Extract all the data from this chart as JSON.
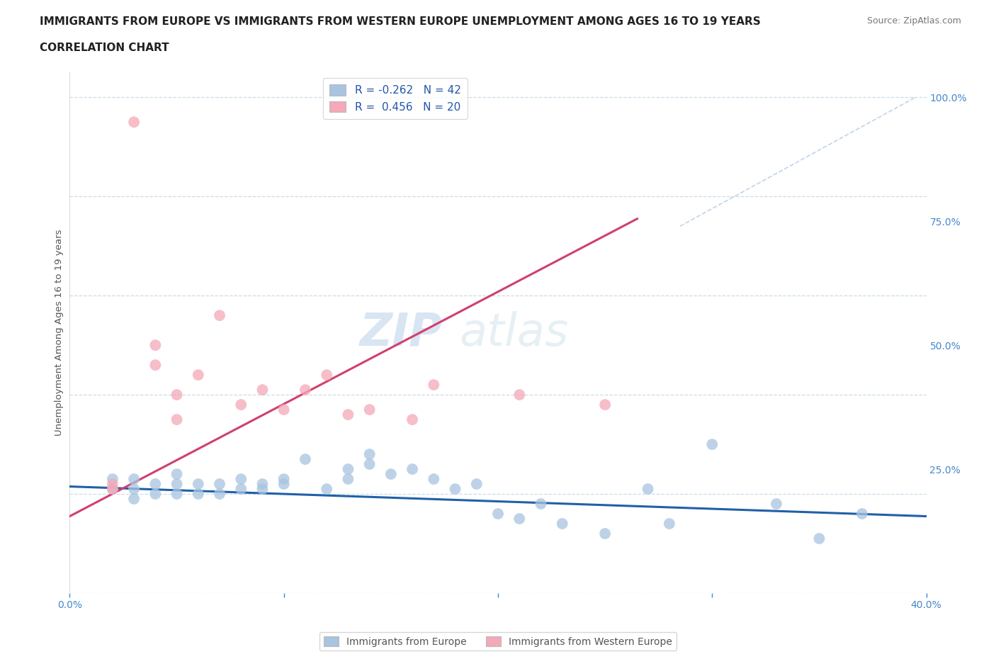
{
  "title_line1": "IMMIGRANTS FROM EUROPE VS IMMIGRANTS FROM WESTERN EUROPE UNEMPLOYMENT AMONG AGES 16 TO 19 YEARS",
  "title_line2": "CORRELATION CHART",
  "source": "Source: ZipAtlas.com",
  "ylabel": "Unemployment Among Ages 16 to 19 years",
  "xlim": [
    0.0,
    0.4
  ],
  "ylim": [
    0.0,
    1.05
  ],
  "xticks": [
    0.0,
    0.1,
    0.2,
    0.3,
    0.4
  ],
  "xticklabels": [
    "0.0%",
    "",
    "",
    "",
    "40.0%"
  ],
  "yticks": [
    0.0,
    0.25,
    0.5,
    0.75,
    1.0
  ],
  "yticklabels": [
    "",
    "25.0%",
    "50.0%",
    "75.0%",
    "100.0%"
  ],
  "blue_R": -0.262,
  "blue_N": 42,
  "pink_R": 0.456,
  "pink_N": 20,
  "blue_color": "#a8c4e0",
  "pink_color": "#f4a8b8",
  "blue_line_color": "#2060a8",
  "pink_line_color": "#d04070",
  "diag_line_color": "#c0d4e8",
  "watermark_zip": "ZIP",
  "watermark_atlas": "atlas",
  "blue_scatter_x": [
    0.02,
    0.02,
    0.03,
    0.03,
    0.03,
    0.04,
    0.04,
    0.05,
    0.05,
    0.05,
    0.06,
    0.06,
    0.07,
    0.07,
    0.08,
    0.08,
    0.09,
    0.09,
    0.1,
    0.1,
    0.11,
    0.12,
    0.13,
    0.13,
    0.14,
    0.14,
    0.15,
    0.16,
    0.17,
    0.18,
    0.19,
    0.2,
    0.21,
    0.22,
    0.23,
    0.25,
    0.27,
    0.28,
    0.3,
    0.33,
    0.35,
    0.37
  ],
  "blue_scatter_y": [
    0.21,
    0.23,
    0.19,
    0.21,
    0.23,
    0.2,
    0.22,
    0.2,
    0.22,
    0.24,
    0.2,
    0.22,
    0.2,
    0.22,
    0.21,
    0.23,
    0.21,
    0.22,
    0.22,
    0.23,
    0.27,
    0.21,
    0.23,
    0.25,
    0.26,
    0.28,
    0.24,
    0.25,
    0.23,
    0.21,
    0.22,
    0.16,
    0.15,
    0.18,
    0.14,
    0.12,
    0.21,
    0.14,
    0.3,
    0.18,
    0.11,
    0.16
  ],
  "pink_scatter_x": [
    0.02,
    0.02,
    0.03,
    0.04,
    0.04,
    0.05,
    0.05,
    0.06,
    0.07,
    0.08,
    0.09,
    0.1,
    0.11,
    0.12,
    0.13,
    0.14,
    0.16,
    0.17,
    0.21,
    0.25
  ],
  "pink_scatter_y": [
    0.21,
    0.22,
    0.95,
    0.46,
    0.5,
    0.35,
    0.4,
    0.44,
    0.56,
    0.38,
    0.41,
    0.37,
    0.41,
    0.44,
    0.36,
    0.37,
    0.35,
    0.42,
    0.4,
    0.38
  ],
  "blue_line_x": [
    0.0,
    0.4
  ],
  "blue_line_y": [
    0.215,
    0.155
  ],
  "pink_line_x": [
    0.0,
    0.265
  ],
  "pink_line_y": [
    0.155,
    0.755
  ],
  "diag_line_x": [
    0.285,
    0.395
  ],
  "diag_line_y": [
    0.74,
    1.0
  ]
}
